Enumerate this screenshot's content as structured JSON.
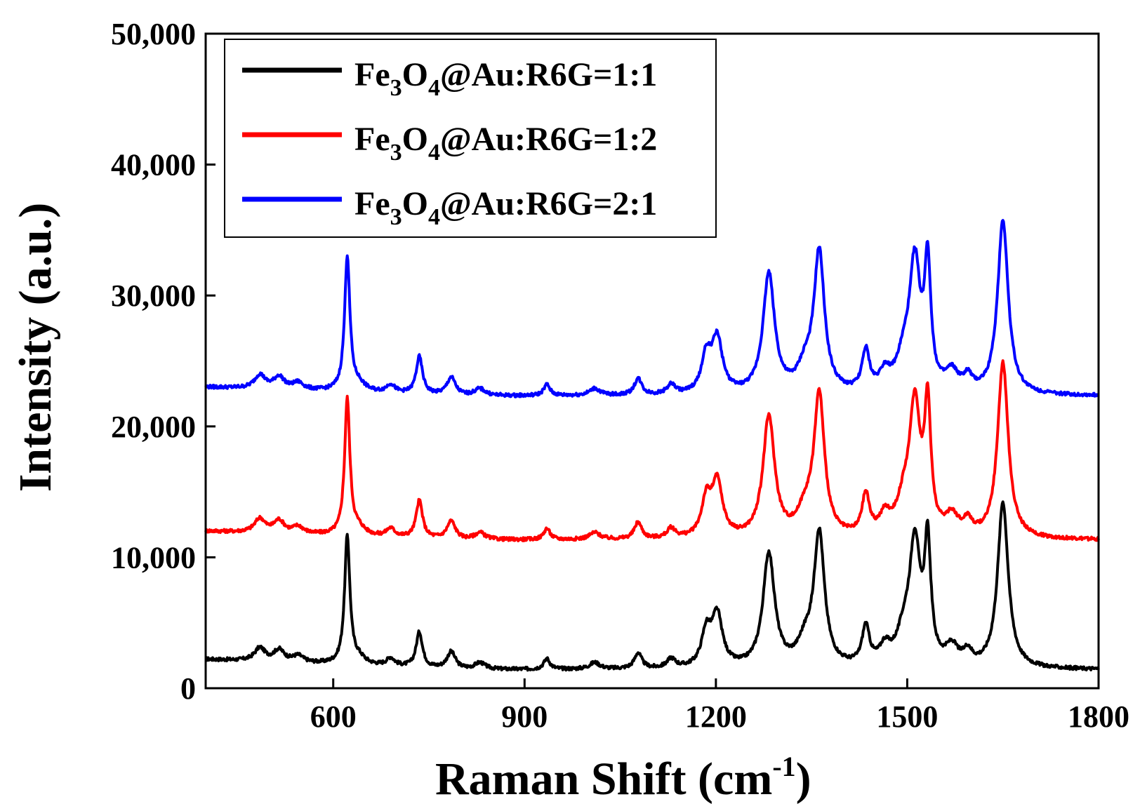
{
  "chart_data": {
    "type": "line",
    "title": "",
    "xlabel": "Raman Shift (cm",
    "xlabel_sup": "-1",
    "xlabel_close": ")",
    "ylabel": "Intensity (a.u.)",
    "xlim": [
      400,
      1800
    ],
    "ylim": [
      0,
      50000
    ],
    "xticks": [
      600,
      900,
      1200,
      1500,
      1800
    ],
    "xtick_labels": [
      "600",
      "900",
      "1200",
      "1500",
      "1800"
    ],
    "yticks": [
      0,
      10000,
      20000,
      30000,
      40000,
      50000
    ],
    "ytick_labels": [
      "0",
      "10,000",
      "20,000",
      "30,000",
      "40,000",
      "50,000"
    ],
    "grid": false,
    "legend_position": "top-left",
    "peaks": [
      {
        "x": 485,
        "h": 1000,
        "w": 10
      },
      {
        "x": 515,
        "h": 900,
        "w": 10
      },
      {
        "x": 545,
        "h": 500,
        "w": 10
      },
      {
        "x": 622,
        "h": 9800,
        "w": 5
      },
      {
        "x": 640,
        "h": 500,
        "w": 12
      },
      {
        "x": 690,
        "h": 600,
        "w": 8
      },
      {
        "x": 735,
        "h": 2700,
        "w": 6
      },
      {
        "x": 785,
        "h": 1300,
        "w": 8
      },
      {
        "x": 830,
        "h": 500,
        "w": 10
      },
      {
        "x": 935,
        "h": 800,
        "w": 6
      },
      {
        "x": 1010,
        "h": 500,
        "w": 10
      },
      {
        "x": 1078,
        "h": 1200,
        "w": 7
      },
      {
        "x": 1130,
        "h": 700,
        "w": 8
      },
      {
        "x": 1185,
        "h": 2600,
        "w": 9
      },
      {
        "x": 1202,
        "h": 3900,
        "w": 10
      },
      {
        "x": 1283,
        "h": 8700,
        "w": 11
      },
      {
        "x": 1340,
        "h": 1600,
        "w": 14
      },
      {
        "x": 1362,
        "h": 10100,
        "w": 10
      },
      {
        "x": 1435,
        "h": 2900,
        "w": 7
      },
      {
        "x": 1465,
        "h": 1300,
        "w": 10
      },
      {
        "x": 1495,
        "h": 2200,
        "w": 14
      },
      {
        "x": 1512,
        "h": 9000,
        "w": 10
      },
      {
        "x": 1532,
        "h": 8900,
        "w": 6
      },
      {
        "x": 1570,
        "h": 1400,
        "w": 12
      },
      {
        "x": 1595,
        "h": 1000,
        "w": 8
      },
      {
        "x": 1650,
        "h": 12700,
        "w": 10
      }
    ],
    "series": [
      {
        "name": "Fe3O4@Au:R6G=1:1",
        "base": "Fe",
        "sub1": "3",
        "mid": "O",
        "sub2": "4",
        "tail": "@Au:R6G=1:1",
        "color": "#000000",
        "offset": 0,
        "baseline_start": 2200,
        "baseline_end": 1400,
        "peak_scale": 1.0
      },
      {
        "name": "Fe3O4@Au:R6G=1:2",
        "base": "Fe",
        "sub1": "3",
        "mid": "O",
        "sub2": "4",
        "tail": "@Au:R6G=1:2",
        "color": "#ff0000",
        "offset": 9900,
        "baseline_start": 12000,
        "baseline_end": 11300,
        "peak_scale": 1.06
      },
      {
        "name": "Fe3O4@Au:R6G=2:1",
        "base": "Fe",
        "sub1": "3",
        "mid": "O",
        "sub2": "4",
        "tail": "@Au:R6G=2:1",
        "color": "#0000ff",
        "offset": 21000,
        "baseline_start": 23000,
        "baseline_end": 22300,
        "peak_scale": 1.05
      }
    ]
  }
}
